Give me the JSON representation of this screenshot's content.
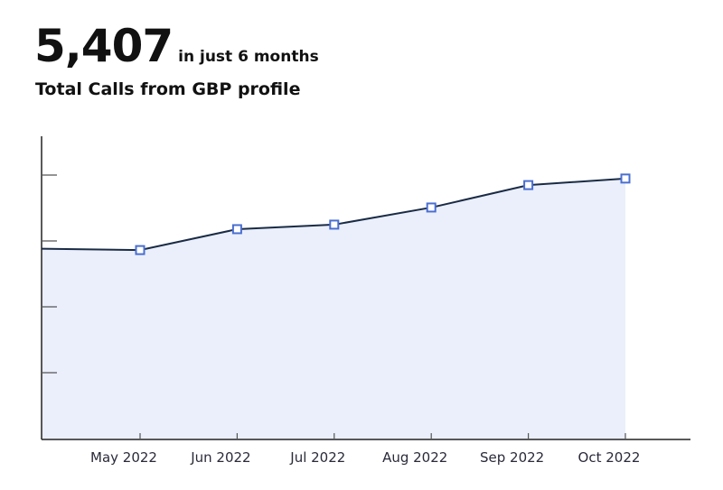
{
  "header": {
    "value": "5,407",
    "value_suffix": "in just 6 months",
    "subtitle": "Total Calls from GBP profile"
  },
  "colors": {
    "line": "#1a2b45",
    "area_fill": "#eaeffb",
    "marker_stroke": "#4a6fd1",
    "marker_fill": "#ffffff",
    "axis": "#222222",
    "tick": "#555555"
  },
  "chart_data": {
    "type": "area",
    "title": "Total Calls from GBP profile",
    "subtitle": "5,407 in just 6 months",
    "xlabel": "",
    "ylabel": "",
    "categories": [
      "May 2022",
      "Jun 2022",
      "Jul 2022",
      "Aug 2022",
      "Sep 2022",
      "Oct 2022"
    ],
    "series": [
      {
        "name": "Calls",
        "values": [
          752,
          835,
          853,
          921,
          1010,
          1036
        ]
      }
    ],
    "ylim": [
      0,
      1200
    ],
    "y_tick_labels_visible": false,
    "grid": false,
    "legend": "none",
    "markers": "square"
  }
}
